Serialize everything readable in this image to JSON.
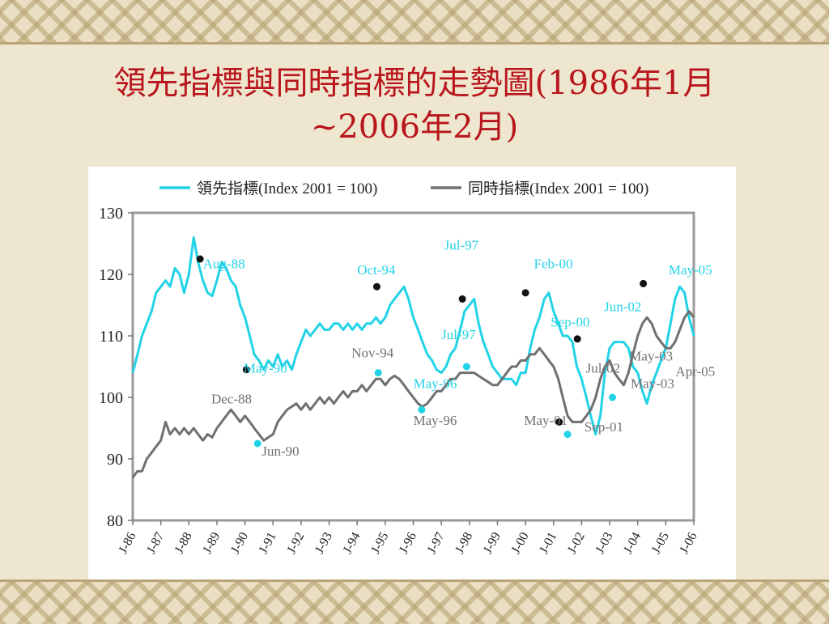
{
  "slide": {
    "title_line1": "領先指標與同時指標的走勢圖(1986年1月",
    "title_line2": "~2006年2月)"
  },
  "chart_data": {
    "type": "line",
    "ylim": [
      80,
      130
    ],
    "yticks": [
      80,
      90,
      100,
      110,
      120,
      130
    ],
    "xticks": [
      "J-86",
      "J-87",
      "J-88",
      "J-89",
      "J-90",
      "J-91",
      "J-92",
      "J-93",
      "J-94",
      "J-95",
      "J-96",
      "J-97",
      "J-98",
      "J-99",
      "J-00",
      "J-01",
      "J-02",
      "J-03",
      "J-04",
      "J-05",
      "J-06"
    ],
    "x_start": 1986.0,
    "x_end": 2006.0,
    "colors": {
      "leading": "#22d3e6",
      "coincident": "#707070",
      "turning_dot": "#111111"
    },
    "series": [
      {
        "name": "領先指標(Index 2001 = 100)",
        "key": "leading",
        "points": [
          [
            1986.0,
            104
          ],
          [
            1986.17,
            107
          ],
          [
            1986.33,
            110
          ],
          [
            1986.5,
            112
          ],
          [
            1986.67,
            114
          ],
          [
            1986.83,
            117
          ],
          [
            1987.0,
            118
          ],
          [
            1987.17,
            119
          ],
          [
            1987.33,
            118
          ],
          [
            1987.5,
            121
          ],
          [
            1987.67,
            120
          ],
          [
            1987.83,
            117
          ],
          [
            1988.0,
            120
          ],
          [
            1988.17,
            126
          ],
          [
            1988.33,
            122
          ],
          [
            1988.5,
            119
          ],
          [
            1988.67,
            117
          ],
          [
            1988.83,
            116.5
          ],
          [
            1989.0,
            119
          ],
          [
            1989.17,
            122
          ],
          [
            1989.33,
            121
          ],
          [
            1989.5,
            119
          ],
          [
            1989.67,
            118
          ],
          [
            1989.83,
            115
          ],
          [
            1990.0,
            113
          ],
          [
            1990.17,
            110
          ],
          [
            1990.33,
            107
          ],
          [
            1990.5,
            106
          ],
          [
            1990.67,
            104.5
          ],
          [
            1990.83,
            106
          ],
          [
            1991.0,
            105
          ],
          [
            1991.17,
            107
          ],
          [
            1991.33,
            105
          ],
          [
            1991.5,
            106
          ],
          [
            1991.67,
            104.5
          ],
          [
            1991.83,
            107
          ],
          [
            1992.0,
            109
          ],
          [
            1992.17,
            111
          ],
          [
            1992.33,
            110
          ],
          [
            1992.5,
            111
          ],
          [
            1992.67,
            112
          ],
          [
            1992.83,
            111
          ],
          [
            1993.0,
            111
          ],
          [
            1993.17,
            112
          ],
          [
            1993.33,
            112
          ],
          [
            1993.5,
            111
          ],
          [
            1993.67,
            112
          ],
          [
            1993.83,
            111
          ],
          [
            1994.0,
            112
          ],
          [
            1994.17,
            111
          ],
          [
            1994.33,
            112
          ],
          [
            1994.5,
            112
          ],
          [
            1994.67,
            113
          ],
          [
            1994.83,
            112
          ],
          [
            1995.0,
            113
          ],
          [
            1995.17,
            115
          ],
          [
            1995.33,
            116
          ],
          [
            1995.5,
            117
          ],
          [
            1995.67,
            118
          ],
          [
            1995.83,
            116
          ],
          [
            1996.0,
            113
          ],
          [
            1996.17,
            111
          ],
          [
            1996.33,
            109
          ],
          [
            1996.5,
            107
          ],
          [
            1996.67,
            106
          ],
          [
            1996.83,
            104.5
          ],
          [
            1997.0,
            104
          ],
          [
            1997.17,
            105
          ],
          [
            1997.33,
            107
          ],
          [
            1997.5,
            108
          ],
          [
            1997.67,
            111
          ],
          [
            1997.83,
            114
          ],
          [
            1998.0,
            115
          ],
          [
            1998.17,
            116
          ],
          [
            1998.33,
            112
          ],
          [
            1998.5,
            109
          ],
          [
            1998.67,
            107
          ],
          [
            1998.83,
            105
          ],
          [
            1999.0,
            104
          ],
          [
            1999.17,
            103
          ],
          [
            1999.33,
            103
          ],
          [
            1999.5,
            103
          ],
          [
            1999.67,
            102
          ],
          [
            1999.83,
            104
          ],
          [
            2000.0,
            104
          ],
          [
            2000.17,
            108
          ],
          [
            2000.33,
            111
          ],
          [
            2000.5,
            113
          ],
          [
            2000.67,
            116
          ],
          [
            2000.83,
            117
          ],
          [
            2001.0,
            114
          ],
          [
            2001.17,
            112
          ],
          [
            2001.33,
            110
          ],
          [
            2001.5,
            110
          ],
          [
            2001.67,
            109
          ],
          [
            2001.83,
            105
          ],
          [
            2002.0,
            103
          ],
          [
            2002.17,
            100
          ],
          [
            2002.33,
            97
          ],
          [
            2002.5,
            94
          ],
          [
            2002.67,
            97
          ],
          [
            2002.83,
            104
          ],
          [
            2003.0,
            108
          ],
          [
            2003.17,
            109
          ],
          [
            2003.33,
            109
          ],
          [
            2003.5,
            109
          ],
          [
            2003.67,
            108
          ],
          [
            2003.83,
            105
          ],
          [
            2004.0,
            104
          ],
          [
            2004.17,
            101
          ],
          [
            2004.33,
            99
          ],
          [
            2004.5,
            102
          ],
          [
            2004.67,
            104
          ],
          [
            2004.83,
            106
          ],
          [
            2005.0,
            108
          ],
          [
            2005.17,
            112
          ],
          [
            2005.33,
            116
          ],
          [
            2005.5,
            118
          ],
          [
            2005.67,
            117
          ],
          [
            2005.83,
            113
          ],
          [
            2006.0,
            110
          ]
        ]
      },
      {
        "name": "同時指標(Index 2001 = 100)",
        "key": "coincident",
        "points": [
          [
            1986.0,
            87
          ],
          [
            1986.17,
            88
          ],
          [
            1986.33,
            88
          ],
          [
            1986.5,
            90
          ],
          [
            1986.67,
            91
          ],
          [
            1986.83,
            92
          ],
          [
            1987.0,
            93
          ],
          [
            1987.17,
            96
          ],
          [
            1987.33,
            94
          ],
          [
            1987.5,
            95
          ],
          [
            1987.67,
            94
          ],
          [
            1987.83,
            95
          ],
          [
            1988.0,
            94
          ],
          [
            1988.17,
            95
          ],
          [
            1988.33,
            94
          ],
          [
            1988.5,
            93
          ],
          [
            1988.67,
            94
          ],
          [
            1988.83,
            93.5
          ],
          [
            1989.0,
            95
          ],
          [
            1989.17,
            96
          ],
          [
            1989.33,
            97
          ],
          [
            1989.5,
            98
          ],
          [
            1989.67,
            97
          ],
          [
            1989.83,
            96
          ],
          [
            1990.0,
            97
          ],
          [
            1990.17,
            96
          ],
          [
            1990.33,
            95
          ],
          [
            1990.5,
            94
          ],
          [
            1990.67,
            93
          ],
          [
            1990.83,
            93.5
          ],
          [
            1991.0,
            94
          ],
          [
            1991.17,
            96
          ],
          [
            1991.33,
            97
          ],
          [
            1991.5,
            98
          ],
          [
            1991.67,
            98.5
          ],
          [
            1991.83,
            99
          ],
          [
            1992.0,
            98
          ],
          [
            1992.17,
            99
          ],
          [
            1992.33,
            98
          ],
          [
            1992.5,
            99
          ],
          [
            1992.67,
            100
          ],
          [
            1992.83,
            99
          ],
          [
            1993.0,
            100
          ],
          [
            1993.17,
            99
          ],
          [
            1993.33,
            100
          ],
          [
            1993.5,
            101
          ],
          [
            1993.67,
            100
          ],
          [
            1993.83,
            101
          ],
          [
            1994.0,
            101
          ],
          [
            1994.17,
            102
          ],
          [
            1994.33,
            101
          ],
          [
            1994.5,
            102
          ],
          [
            1994.67,
            103
          ],
          [
            1994.83,
            103
          ],
          [
            1995.0,
            102
          ],
          [
            1995.17,
            103
          ],
          [
            1995.33,
            103.5
          ],
          [
            1995.5,
            103
          ],
          [
            1995.67,
            102
          ],
          [
            1995.83,
            101
          ],
          [
            1996.0,
            100
          ],
          [
            1996.17,
            99
          ],
          [
            1996.33,
            98.5
          ],
          [
            1996.5,
            99
          ],
          [
            1996.67,
            100
          ],
          [
            1996.83,
            101
          ],
          [
            1997.0,
            101
          ],
          [
            1997.17,
            102
          ],
          [
            1997.33,
            103
          ],
          [
            1997.5,
            103
          ],
          [
            1997.67,
            104
          ],
          [
            1997.83,
            104
          ],
          [
            1998.0,
            104
          ],
          [
            1998.17,
            104
          ],
          [
            1998.33,
            103.5
          ],
          [
            1998.5,
            103
          ],
          [
            1998.67,
            102.5
          ],
          [
            1998.83,
            102
          ],
          [
            1999.0,
            102
          ],
          [
            1999.17,
            103
          ],
          [
            1999.33,
            104
          ],
          [
            1999.5,
            105
          ],
          [
            1999.67,
            105
          ],
          [
            1999.83,
            106
          ],
          [
            2000.0,
            106
          ],
          [
            2000.17,
            107
          ],
          [
            2000.33,
            107
          ],
          [
            2000.5,
            108
          ],
          [
            2000.67,
            107
          ],
          [
            2000.83,
            106
          ],
          [
            2001.0,
            105
          ],
          [
            2001.17,
            103
          ],
          [
            2001.33,
            100
          ],
          [
            2001.5,
            97
          ],
          [
            2001.67,
            96
          ],
          [
            2001.83,
            96
          ],
          [
            2002.0,
            96
          ],
          [
            2002.17,
            97
          ],
          [
            2002.33,
            98
          ],
          [
            2002.5,
            100
          ],
          [
            2002.67,
            103
          ],
          [
            2002.83,
            105
          ],
          [
            2003.0,
            106
          ],
          [
            2003.17,
            104
          ],
          [
            2003.33,
            103
          ],
          [
            2003.5,
            102
          ],
          [
            2003.67,
            104
          ],
          [
            2003.83,
            107
          ],
          [
            2004.0,
            110
          ],
          [
            2004.17,
            112
          ],
          [
            2004.33,
            113
          ],
          [
            2004.5,
            112
          ],
          [
            2004.67,
            110
          ],
          [
            2004.83,
            109
          ],
          [
            2005.0,
            108
          ],
          [
            2005.17,
            108
          ],
          [
            2005.33,
            109
          ],
          [
            2005.5,
            111
          ],
          [
            2005.67,
            113
          ],
          [
            2005.83,
            114
          ],
          [
            2006.0,
            113
          ]
        ]
      }
    ],
    "turning_points": [
      {
        "series": "leading",
        "x": 1988.4,
        "y": 122.5
      },
      {
        "series": "leading",
        "x": 1990.05,
        "y": 104.5
      },
      {
        "series": "leading",
        "x": 1994.7,
        "y": 118
      },
      {
        "series": "leading",
        "x": 1997.75,
        "y": 116
      },
      {
        "series": "leading",
        "x": 2000.0,
        "y": 117
      },
      {
        "series": "leading",
        "x": 2001.2,
        "y": 96
      },
      {
        "series": "leading",
        "x": 2001.85,
        "y": 109.5
      },
      {
        "series": "leading",
        "x": 2004.2,
        "y": 118.5
      },
      {
        "series": "coincident",
        "x": 1990.45,
        "y": 92.5
      },
      {
        "series": "coincident",
        "x": 1994.75,
        "y": 104
      },
      {
        "series": "coincident",
        "x": 1996.3,
        "y": 98
      },
      {
        "series": "coincident",
        "x": 1997.9,
        "y": 105
      },
      {
        "series": "coincident",
        "x": 2001.5,
        "y": 94
      },
      {
        "series": "coincident",
        "x": 2003.1,
        "y": 100
      }
    ],
    "annotations": [
      {
        "text": "Aug-88",
        "x": 1988.5,
        "y": 121,
        "color": "leading"
      },
      {
        "text": "May-90",
        "x": 1989.95,
        "y": 104,
        "color": "leading"
      },
      {
        "text": "Dec-88",
        "x": 1988.8,
        "y": 99,
        "color": "coincident"
      },
      {
        "text": "Jun-90",
        "x": 1990.6,
        "y": 90.5,
        "color": "coincident"
      },
      {
        "text": "Oct-94",
        "x": 1994.0,
        "y": 120,
        "color": "leading"
      },
      {
        "text": "Nov-94",
        "x": 1993.8,
        "y": 106.5,
        "color": "coincident"
      },
      {
        "text": "Jul-97",
        "x": 1997.1,
        "y": 124,
        "color": "leading"
      },
      {
        "text": "Jul-97",
        "x": 1997.0,
        "y": 109.5,
        "color": "leading"
      },
      {
        "text": "May-96",
        "x": 1996.0,
        "y": 101.5,
        "color": "leading"
      },
      {
        "text": "May-96",
        "x": 1996.0,
        "y": 95.5,
        "color": "coincident"
      },
      {
        "text": "Feb-00",
        "x": 2000.3,
        "y": 121,
        "color": "leading"
      },
      {
        "text": "Sep-00",
        "x": 2000.9,
        "y": 111.5,
        "color": "leading"
      },
      {
        "text": "May-01",
        "x": 1999.95,
        "y": 95.5,
        "color": "coincident"
      },
      {
        "text": "Sep-01",
        "x": 2002.1,
        "y": 94.5,
        "color": "coincident"
      },
      {
        "text": "Jun-02",
        "x": 2002.8,
        "y": 114,
        "color": "leading"
      },
      {
        "text": "Jul-02",
        "x": 2002.15,
        "y": 104,
        "color": "coincident"
      },
      {
        "text": "May-05",
        "x": 2005.1,
        "y": 120,
        "color": "leading"
      },
      {
        "text": "May-03",
        "x": 2003.7,
        "y": 106,
        "color": "coincident"
      },
      {
        "text": "May-03",
        "x": 2003.75,
        "y": 101.5,
        "color": "coincident"
      },
      {
        "text": "Apr-05",
        "x": 2005.35,
        "y": 103.5,
        "color": "coincident"
      }
    ]
  }
}
